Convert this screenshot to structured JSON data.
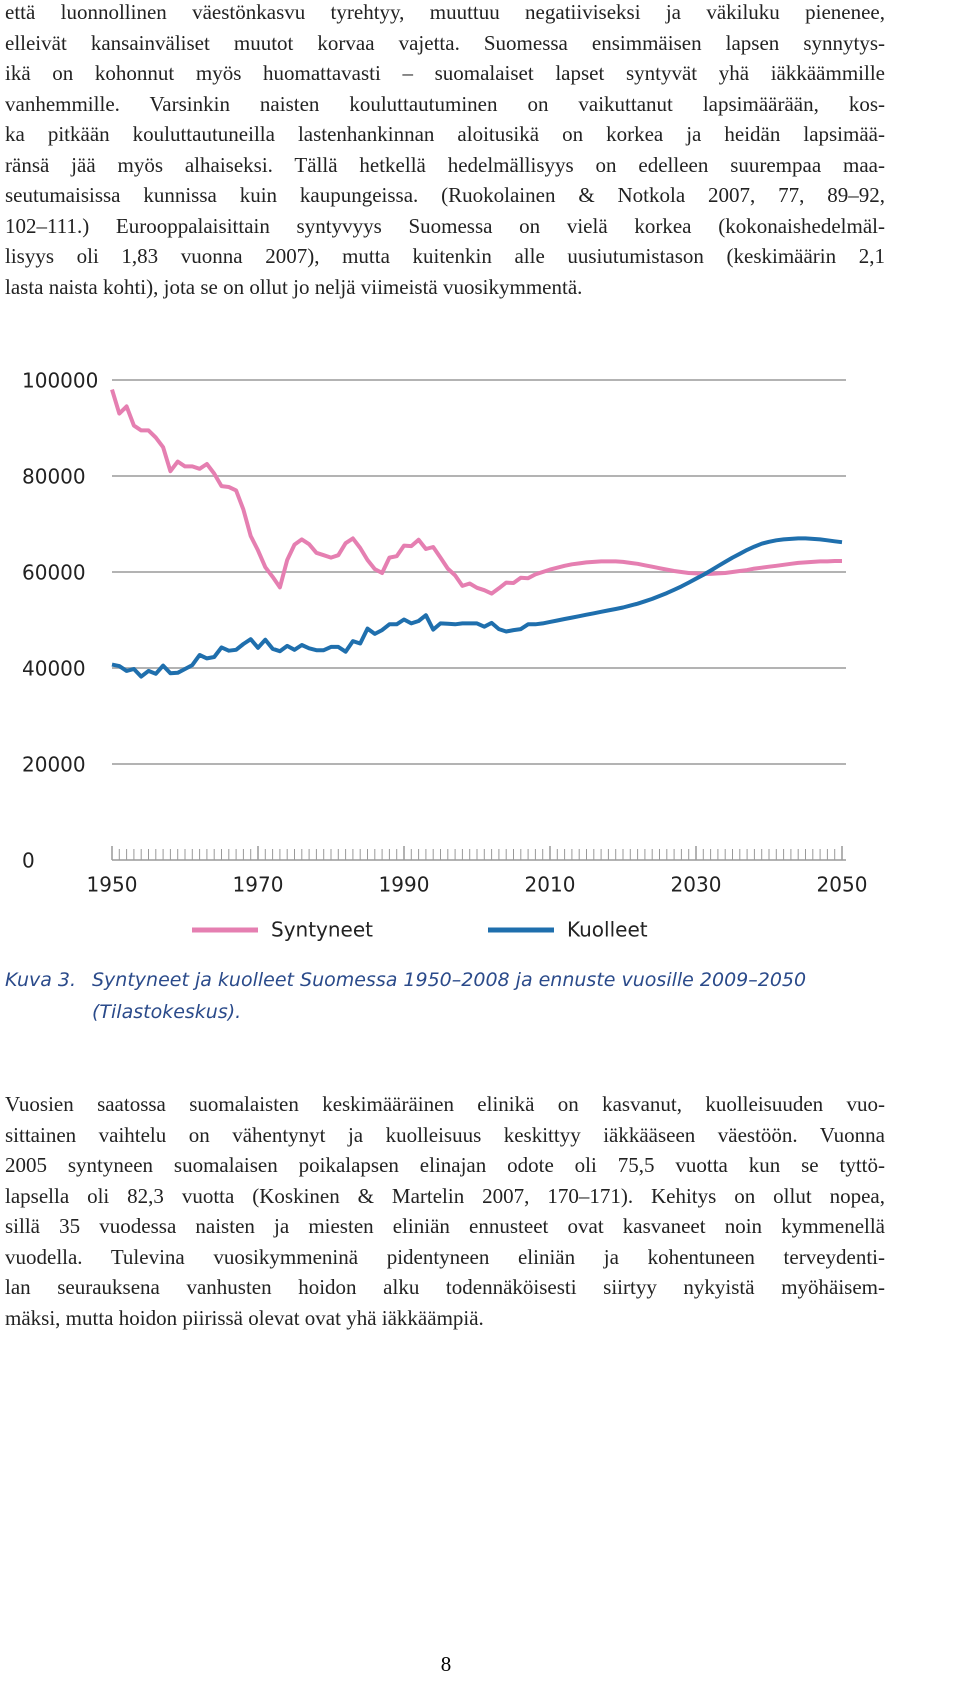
{
  "paragraphs": [
    [
      "että luonnollinen väestönkasvu tyrehtyy, muuttuu negatiiviseksi ja väkiluku pienenee,",
      "elleivät kansainväliset muutot korvaa vajetta. Suomessa ensimmäisen lapsen synnytys-",
      "ikä on kohonnut myös huomattavasti – suomalaiset lapset syntyvät yhä iäkkäämmille",
      "vanhemmille. Varsinkin naisten kouluttautuminen on vaikuttanut lapsimäärään, kos-",
      "ka pitkään kouluttautuneilla lastenhankinnan aloitusikä on korkea ja heidän lapsimää-",
      "ränsä jää myös alhaiseksi. Tällä hetkellä hedelmällisyys on edelleen suurempaa maa-",
      "seutumaisissa kunnissa kuin kaupungeissa. (Ruokolainen & Notkola 2007, 77, 89–92,",
      "102–111.) Eurooppalaisittain syntyvyys Suomessa on vielä korkea (kokonaishedelmäl-",
      "lisyys oli 1,83 vuonna 2007), mutta kuitenkin alle uusiutumistason (keskimäärin 2,1",
      "lasta naista kohti), jota se on ollut jo neljä viimeistä vuosikymmentä."
    ],
    [
      "Vuosien saatossa suomalaisten keskimääräinen elinikä on kasvanut, kuolleisuuden vuo-",
      "sittainen vaihtelu on vähentynyt ja kuolleisuus keskittyy iäkkääseen väestöön. Vuonna",
      "2005 syntyneen suomalaisen poikalapsen elinajan odote oli 75,5 vuotta kun se tyttö-",
      "lapsella oli 82,3 vuotta (Koskinen & Martelin 2007, 170–171). Kehitys on ollut nopea,",
      "sillä 35 vuodessa naisten ja miesten eliniän ennusteet ovat kasvaneet noin kymmenellä",
      "vuodella. Tulevina vuosikymmeninä pidentyneen eliniän ja kohentuneen terveydenti-",
      "lan seurauksena vanhusten hoidon alku todennäköisesti siirtyy nykyistä myöhäisem-",
      "mäksi, mutta hoidon piirissä olevat ovat yhä iäkkäämpiä."
    ]
  ],
  "caption": {
    "label": "Kuva 3.",
    "text": [
      "Syntyneet ja kuolleet Suomessa 1950–2008 ja ennuste vuosille 2009–2050",
      "(Tilastokeskus)."
    ]
  },
  "page_number": "8",
  "chart_data": {
    "type": "line",
    "x": [
      1950,
      1951,
      1952,
      1953,
      1954,
      1955,
      1956,
      1957,
      1958,
      1959,
      1960,
      1961,
      1962,
      1963,
      1964,
      1965,
      1966,
      1967,
      1968,
      1969,
      1970,
      1971,
      1972,
      1973,
      1974,
      1975,
      1976,
      1977,
      1978,
      1979,
      1980,
      1981,
      1982,
      1983,
      1984,
      1985,
      1986,
      1987,
      1988,
      1989,
      1990,
      1991,
      1992,
      1993,
      1994,
      1995,
      1996,
      1997,
      1998,
      1999,
      2000,
      2001,
      2002,
      2003,
      2004,
      2005,
      2006,
      2007,
      2008,
      2009,
      2010,
      2011,
      2012,
      2013,
      2014,
      2015,
      2016,
      2017,
      2018,
      2019,
      2020,
      2021,
      2022,
      2023,
      2024,
      2025,
      2026,
      2027,
      2028,
      2029,
      2030,
      2031,
      2032,
      2033,
      2034,
      2035,
      2036,
      2037,
      2038,
      2039,
      2040,
      2041,
      2042,
      2043,
      2044,
      2045,
      2046,
      2047,
      2048,
      2049,
      2050
    ],
    "series": [
      {
        "name": "Syntyneet",
        "color": "#e57fb1",
        "values": [
          98000,
          93000,
          94500,
          90500,
          89500,
          89500,
          88000,
          86000,
          81000,
          83000,
          82000,
          82000,
          81500,
          82500,
          80500,
          77900,
          77700,
          77000,
          73000,
          67500,
          64500,
          61000,
          59000,
          56800,
          62500,
          65700,
          66800,
          65800,
          64000,
          63500,
          63000,
          63500,
          66000,
          67000,
          65000,
          62500,
          60600,
          59800,
          63000,
          63300,
          65500,
          65400,
          66700,
          64800,
          65200,
          63000,
          60700,
          59300,
          57100,
          57600,
          56700,
          56200,
          55500,
          56600,
          57800,
          57700,
          58800,
          58700,
          59500,
          60000,
          60500,
          60900,
          61300,
          61600,
          61800,
          62000,
          62100,
          62200,
          62200,
          62200,
          62100,
          61900,
          61700,
          61400,
          61100,
          60800,
          60500,
          60200,
          60000,
          59800,
          59700,
          59600,
          59600,
          59700,
          59800,
          60000,
          60200,
          60400,
          60700,
          60900,
          61100,
          61300,
          61500,
          61700,
          61900,
          62000,
          62100,
          62200,
          62200,
          62300,
          62300
        ]
      },
      {
        "name": "Kuolleet",
        "color": "#1f6fad",
        "values": [
          40700,
          40400,
          39400,
          39800,
          38200,
          39400,
          38800,
          40500,
          38900,
          39000,
          39800,
          40600,
          42700,
          42000,
          42300,
          44300,
          43600,
          43800,
          45000,
          46000,
          44200,
          45900,
          44000,
          43500,
          44600,
          43800,
          44800,
          44100,
          43700,
          43700,
          44400,
          44400,
          43400,
          45600,
          45100,
          48200,
          47100,
          47900,
          49100,
          49100,
          50100,
          49300,
          49800,
          51000,
          48000,
          49300,
          49200,
          49100,
          49300,
          49300,
          49300,
          48600,
          49400,
          48100,
          47600,
          47900,
          48100,
          49100,
          49100,
          49300,
          49600,
          49900,
          50200,
          50500,
          50800,
          51100,
          51400,
          51700,
          52000,
          52300,
          52600,
          53000,
          53400,
          53900,
          54400,
          55000,
          55600,
          56300,
          57000,
          57800,
          58600,
          59400,
          60300,
          61200,
          62100,
          63000,
          63800,
          64600,
          65300,
          65900,
          66300,
          66600,
          66800,
          66900,
          67000,
          67000,
          66900,
          66800,
          66600,
          66400,
          66200
        ]
      }
    ],
    "xlim": [
      1950,
      2050
    ],
    "xticks": [
      1950,
      1970,
      1990,
      2010,
      2030,
      2050
    ],
    "ylim": [
      0,
      100000
    ],
    "yticks": [
      0,
      20000,
      40000,
      60000,
      80000,
      100000
    ],
    "grid": true,
    "legend": "bottom"
  }
}
